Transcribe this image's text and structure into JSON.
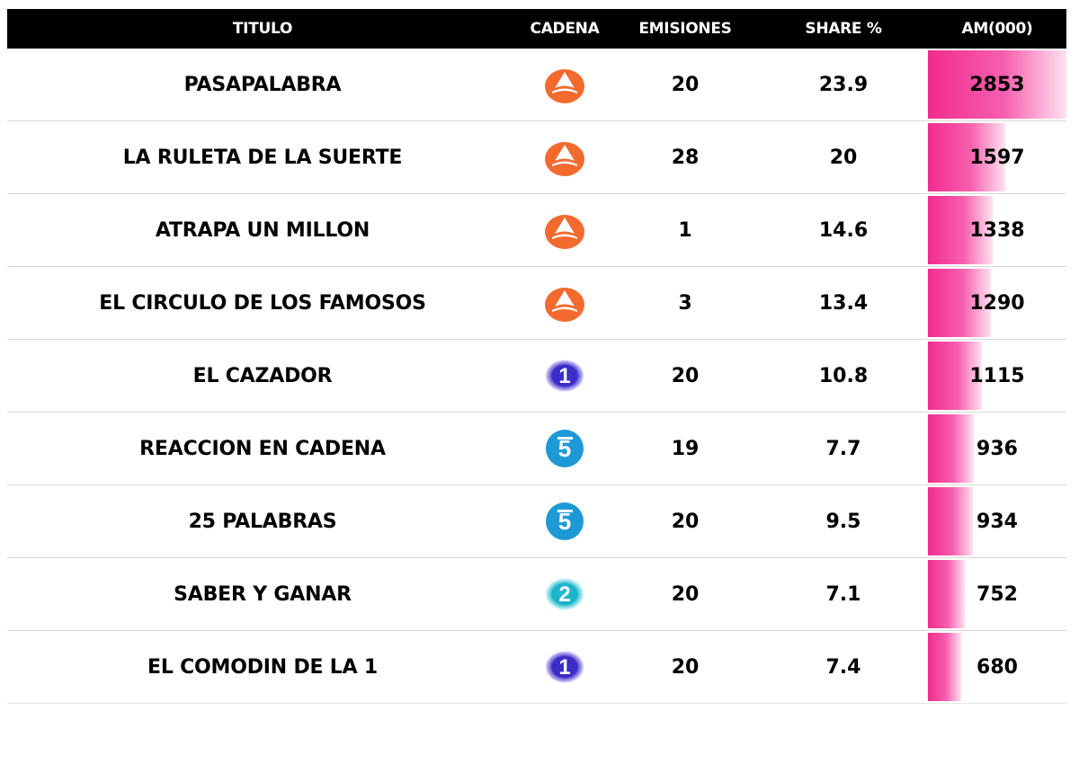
{
  "header": {
    "titulo": "TITULO",
    "cadena": "CADENA",
    "emisiones": "EMISIONES",
    "share": "SHARE %",
    "am": "AM(000)"
  },
  "chart_data": {
    "type": "table",
    "columns": [
      "TITULO",
      "CADENA",
      "EMISIONES",
      "SHARE %",
      "AM(000)"
    ],
    "am_max": 2853,
    "rows": [
      {
        "titulo": "PASAPALABRA",
        "cadena": "antena3-logo",
        "emisiones": "20",
        "share": "23.9",
        "am": "2853",
        "am_value": 2853
      },
      {
        "titulo": "LA RULETA DE LA SUERTE",
        "cadena": "antena3-logo",
        "emisiones": "28",
        "share": "20",
        "am": "1597",
        "am_value": 1597
      },
      {
        "titulo": "ATRAPA UN MILLON",
        "cadena": "antena3-logo",
        "emisiones": "1",
        "share": "14.6",
        "am": "1338",
        "am_value": 1338
      },
      {
        "titulo": "EL CIRCULO DE LOS FAMOSOS",
        "cadena": "antena3-logo",
        "emisiones": "3",
        "share": "13.4",
        "am": "1290",
        "am_value": 1290
      },
      {
        "titulo": "EL CAZADOR",
        "cadena": "la1-logo",
        "emisiones": "20",
        "share": "10.8",
        "am": "1115",
        "am_value": 1115
      },
      {
        "titulo": "REACCION EN CADENA",
        "cadena": "telecinco-logo",
        "emisiones": "19",
        "share": "7.7",
        "am": "936",
        "am_value": 936
      },
      {
        "titulo": "25 PALABRAS",
        "cadena": "telecinco-logo",
        "emisiones": "20",
        "share": "9.5",
        "am": "934",
        "am_value": 934
      },
      {
        "titulo": "SABER Y GANAR",
        "cadena": "la2-logo",
        "emisiones": "20",
        "share": "7.1",
        "am": "752",
        "am_value": 752
      },
      {
        "titulo": "EL COMODIN DE LA 1",
        "cadena": "la1-logo",
        "emisiones": "20",
        "share": "7.4",
        "am": "680",
        "am_value": 680
      }
    ]
  }
}
